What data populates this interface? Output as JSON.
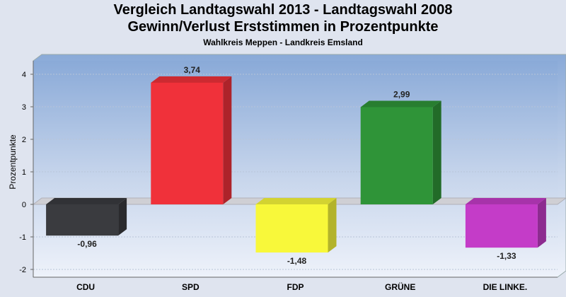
{
  "header": {
    "title_line1": "Vergleich Landtagswahl 2013 - Landtagswahl 2008",
    "title_line2": "Gewinn/Verlust Erststimmen in Prozentpunkte",
    "subtitle": "Wahlkreis Meppen - Landkreis Emsland"
  },
  "chart_data": {
    "type": "bar",
    "title": "Vergleich Landtagswahl 2013 - Landtagswahl 2008 Gewinn/Verlust Erststimmen in Prozentpunkte",
    "subtitle": "Wahlkreis Meppen - Landkreis Emsland",
    "ylabel": "Prozentpunkte",
    "xlabel": "",
    "categories": [
      "CDU",
      "SPD",
      "FDP",
      "GRÜNE",
      "DIE LINKE."
    ],
    "values": [
      -0.96,
      3.74,
      -1.48,
      2.99,
      -1.33
    ],
    "value_labels": [
      "-0,96",
      "3,74",
      "-1,48",
      "2,99",
      "-1,33"
    ],
    "colors": [
      "#3a3b3f",
      "#f0313a",
      "#f8f83a",
      "#2f9438",
      "#c43cc8"
    ],
    "yticks": [
      -2,
      -1,
      0,
      1,
      2,
      3,
      4
    ],
    "ylim": [
      -2.2,
      4.5
    ],
    "grid": true,
    "legend": "none"
  }
}
